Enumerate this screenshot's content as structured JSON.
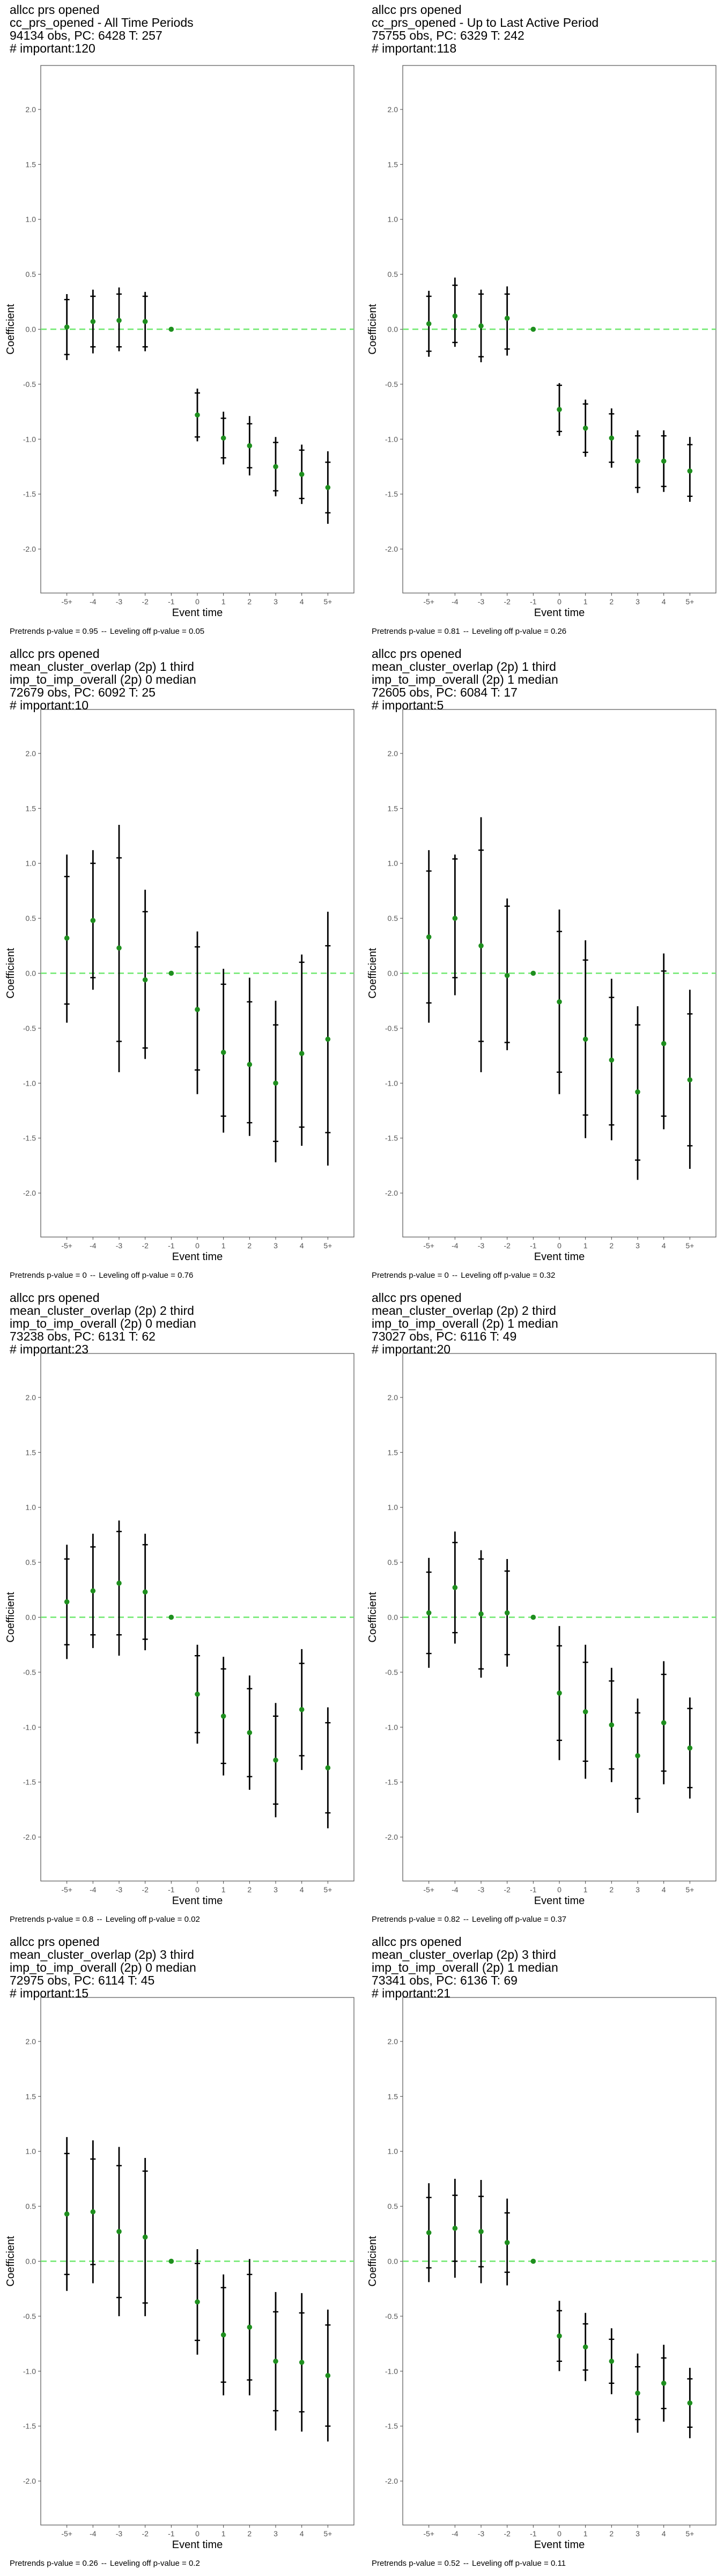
{
  "x_categories": [
    "-5+",
    "-4",
    "-3",
    "-2",
    "-1",
    "0",
    "1",
    "2",
    "3",
    "4",
    "5+"
  ],
  "xlabel": "Event time",
  "ylabel": "Coefficient",
  "ylim": [
    -2.4,
    2.4
  ],
  "yticks": [
    -2.0,
    -1.5,
    -1.0,
    -0.5,
    0.0,
    0.5,
    1.0,
    1.5,
    2.0
  ],
  "ytick_labels": [
    "-2.0",
    "-1.5",
    "-1.0",
    "-0.5",
    "0.0",
    "0.5",
    "1.0",
    "1.5",
    "2.0"
  ],
  "colors": {
    "point": "#1e8f1e",
    "reference_line": "#6fe86f",
    "interval": "#000000",
    "panel_border": "#555555"
  },
  "chart_data": [
    {
      "type": "scatter",
      "title_lines": [
        "allcc prs opened",
        "cc_prs_opened - All Time Periods",
        "94134 obs, PC: 6428 T: 257",
        "# important:120"
      ],
      "footer": {
        "pretrends": "Pretrends p-value = 0.95",
        "separator": "--",
        "leveling": "Leveling off p-value = 0.05"
      },
      "values": [
        0.02,
        0.07,
        0.08,
        0.07,
        0.0,
        -0.78,
        -0.99,
        -1.06,
        -1.25,
        -1.32,
        -1.44
      ],
      "inner": [
        [
          -0.23,
          0.27
        ],
        [
          -0.16,
          0.3
        ],
        [
          -0.16,
          0.32
        ],
        [
          -0.16,
          0.3
        ],
        null,
        [
          -0.98,
          -0.58
        ],
        [
          -1.17,
          -0.81
        ],
        [
          -1.26,
          -0.86
        ],
        [
          -1.47,
          -1.03
        ],
        [
          -1.54,
          -1.1
        ],
        [
          -1.67,
          -1.21
        ]
      ],
      "outer": [
        [
          -0.28,
          0.32
        ],
        [
          -0.22,
          0.36
        ],
        [
          -0.2,
          0.38
        ],
        [
          -0.2,
          0.34
        ],
        null,
        [
          -1.02,
          -0.54
        ],
        [
          -1.23,
          -0.75
        ],
        [
          -1.33,
          -0.79
        ],
        [
          -1.52,
          -0.98
        ],
        [
          -1.59,
          -1.05
        ],
        [
          -1.77,
          -1.11
        ]
      ]
    },
    {
      "type": "scatter",
      "title_lines": [
        "allcc prs opened",
        "cc_prs_opened - Up to Last Active Period",
        "75755 obs, PC: 6329 T: 242",
        "# important:118"
      ],
      "footer": {
        "pretrends": "Pretrends p-value = 0.81",
        "separator": "--",
        "leveling": "Leveling off p-value = 0.26"
      },
      "values": [
        0.05,
        0.12,
        0.03,
        0.1,
        0.0,
        -0.73,
        -0.9,
        -0.99,
        -1.2,
        -1.2,
        -1.29
      ],
      "inner": [
        [
          -0.2,
          0.3
        ],
        [
          -0.12,
          0.4
        ],
        [
          -0.25,
          0.32
        ],
        [
          -0.18,
          0.32
        ],
        null,
        [
          -0.93,
          -0.51
        ],
        [
          -1.12,
          -0.68
        ],
        [
          -1.21,
          -0.77
        ],
        [
          -1.44,
          -0.97
        ],
        [
          -1.43,
          -0.97
        ],
        [
          -1.52,
          -1.05
        ]
      ],
      "outer": [
        [
          -0.25,
          0.35
        ],
        [
          -0.16,
          0.47
        ],
        [
          -0.3,
          0.36
        ],
        [
          -0.24,
          0.39
        ],
        null,
        [
          -0.97,
          -0.49
        ],
        [
          -1.16,
          -0.64
        ],
        [
          -1.26,
          -0.72
        ],
        [
          -1.49,
          -0.92
        ],
        [
          -1.48,
          -0.92
        ],
        [
          -1.57,
          -0.98
        ]
      ]
    },
    {
      "type": "scatter",
      "title_lines": [
        "allcc prs opened",
        "mean_cluster_overlap (2p) 1 third",
        "imp_to_imp_overall (2p) 0 median",
        "72679 obs, PC: 6092 T: 25",
        "# important:10"
      ],
      "footer": {
        "pretrends": "Pretrends p-value = 0",
        "separator": "--",
        "leveling": "Leveling off p-value = 0.76"
      },
      "values": [
        0.32,
        0.48,
        0.23,
        -0.06,
        0.0,
        -0.33,
        -0.72,
        -0.83,
        -1.0,
        -0.73,
        -0.6
      ],
      "inner": [
        [
          -0.28,
          0.88
        ],
        [
          -0.04,
          1.0
        ],
        [
          -0.62,
          1.05
        ],
        [
          -0.68,
          0.56
        ],
        null,
        [
          -0.88,
          0.24
        ],
        [
          -1.3,
          -0.1
        ],
        [
          -1.36,
          -0.26
        ],
        [
          -1.53,
          -0.47
        ],
        [
          -1.4,
          0.1
        ],
        [
          -1.45,
          0.25
        ]
      ],
      "outer": [
        [
          -0.45,
          1.08
        ],
        [
          -0.15,
          1.12
        ],
        [
          -0.9,
          1.35
        ],
        [
          -0.78,
          0.76
        ],
        null,
        [
          -1.1,
          0.38
        ],
        [
          -1.45,
          0.04
        ],
        [
          -1.48,
          -0.04
        ],
        [
          -1.72,
          -0.25
        ],
        [
          -1.57,
          0.17
        ],
        [
          -1.75,
          0.56
        ]
      ]
    },
    {
      "type": "scatter",
      "title_lines": [
        "allcc prs opened",
        "mean_cluster_overlap (2p) 1 third",
        "imp_to_imp_overall (2p) 1 median",
        "72605 obs, PC: 6084 T: 17",
        "# important:5"
      ],
      "footer": {
        "pretrends": "Pretrends p-value = 0",
        "separator": "--",
        "leveling": "Leveling off p-value = 0.32"
      },
      "values": [
        0.33,
        0.5,
        0.25,
        -0.02,
        0.0,
        -0.26,
        -0.6,
        -0.79,
        -1.08,
        -0.64,
        -0.97
      ],
      "inner": [
        [
          -0.27,
          0.93
        ],
        [
          -0.04,
          1.04
        ],
        [
          -0.62,
          1.12
        ],
        [
          -0.63,
          0.61
        ],
        null,
        [
          -0.9,
          0.38
        ],
        [
          -1.29,
          0.12
        ],
        [
          -1.38,
          -0.22
        ],
        [
          -1.7,
          -0.47
        ],
        [
          -1.3,
          0.02
        ],
        [
          -1.57,
          -0.37
        ]
      ],
      "outer": [
        [
          -0.45,
          1.12
        ],
        [
          -0.2,
          1.08
        ],
        [
          -0.9,
          1.42
        ],
        [
          -0.7,
          0.68
        ],
        null,
        [
          -1.1,
          0.58
        ],
        [
          -1.5,
          0.3
        ],
        [
          -1.52,
          -0.05
        ],
        [
          -1.88,
          -0.3
        ],
        [
          -1.42,
          0.18
        ],
        [
          -1.78,
          -0.15
        ]
      ]
    },
    {
      "type": "scatter",
      "title_lines": [
        "allcc prs opened",
        "mean_cluster_overlap (2p) 2 third",
        "imp_to_imp_overall (2p) 0 median",
        "73238 obs, PC: 6131 T: 62",
        "# important:23"
      ],
      "footer": {
        "pretrends": "Pretrends p-value = 0.8",
        "separator": "--",
        "leveling": "Leveling off p-value = 0.02"
      },
      "values": [
        0.14,
        0.24,
        0.31,
        0.23,
        0.0,
        -0.7,
        -0.9,
        -1.05,
        -1.3,
        -0.84,
        -1.37
      ],
      "inner": [
        [
          -0.25,
          0.53
        ],
        [
          -0.16,
          0.64
        ],
        [
          -0.16,
          0.78
        ],
        [
          -0.2,
          0.66
        ],
        null,
        [
          -1.05,
          -0.35
        ],
        [
          -1.33,
          -0.47
        ],
        [
          -1.45,
          -0.65
        ],
        [
          -1.7,
          -0.9
        ],
        [
          -1.26,
          -0.42
        ],
        [
          -1.78,
          -0.96
        ]
      ],
      "outer": [
        [
          -0.38,
          0.66
        ],
        [
          -0.28,
          0.76
        ],
        [
          -0.35,
          0.88
        ],
        [
          -0.3,
          0.76
        ],
        null,
        [
          -1.15,
          -0.25
        ],
        [
          -1.44,
          -0.36
        ],
        [
          -1.57,
          -0.53
        ],
        [
          -1.82,
          -0.78
        ],
        [
          -1.39,
          -0.29
        ],
        [
          -1.92,
          -0.82
        ]
      ]
    },
    {
      "type": "scatter",
      "title_lines": [
        "allcc prs opened",
        "mean_cluster_overlap (2p) 2 third",
        "imp_to_imp_overall (2p) 1 median",
        "73027 obs, PC: 6116 T: 49",
        "# important:20"
      ],
      "footer": {
        "pretrends": "Pretrends p-value = 0.82",
        "separator": "--",
        "leveling": "Leveling off p-value = 0.37"
      },
      "values": [
        0.04,
        0.27,
        0.03,
        0.04,
        0.0,
        -0.69,
        -0.86,
        -0.98,
        -1.26,
        -0.96,
        -1.19
      ],
      "inner": [
        [
          -0.33,
          0.41
        ],
        [
          -0.14,
          0.68
        ],
        [
          -0.47,
          0.53
        ],
        [
          -0.34,
          0.42
        ],
        null,
        [
          -1.12,
          -0.26
        ],
        [
          -1.31,
          -0.41
        ],
        [
          -1.38,
          -0.58
        ],
        [
          -1.65,
          -0.87
        ],
        [
          -1.4,
          -0.52
        ],
        [
          -1.55,
          -0.83
        ]
      ],
      "outer": [
        [
          -0.46,
          0.54
        ],
        [
          -0.24,
          0.78
        ],
        [
          -0.55,
          0.61
        ],
        [
          -0.45,
          0.53
        ],
        null,
        [
          -1.3,
          -0.08
        ],
        [
          -1.47,
          -0.25
        ],
        [
          -1.5,
          -0.46
        ],
        [
          -1.78,
          -0.74
        ],
        [
          -1.52,
          -0.4
        ],
        [
          -1.65,
          -0.73
        ]
      ]
    },
    {
      "type": "scatter",
      "title_lines": [
        "allcc prs opened",
        "mean_cluster_overlap (2p) 3 third",
        "imp_to_imp_overall (2p) 0 median",
        "72975 obs, PC: 6114 T: 45",
        "# important:15"
      ],
      "footer": {
        "pretrends": "Pretrends p-value = 0.26",
        "separator": "--",
        "leveling": "Leveling off p-value = 0.2"
      },
      "values": [
        0.43,
        0.45,
        0.27,
        0.22,
        0.0,
        -0.37,
        -0.67,
        -0.6,
        -0.91,
        -0.92,
        -1.04
      ],
      "inner": [
        [
          -0.12,
          0.98
        ],
        [
          -0.03,
          0.93
        ],
        [
          -0.33,
          0.87
        ],
        [
          -0.38,
          0.82
        ],
        null,
        [
          -0.72,
          -0.02
        ],
        [
          -1.1,
          -0.24
        ],
        [
          -1.08,
          -0.12
        ],
        [
          -1.36,
          -0.46
        ],
        [
          -1.37,
          -0.47
        ],
        [
          -1.5,
          -0.58
        ]
      ],
      "outer": [
        [
          -0.27,
          1.13
        ],
        [
          -0.2,
          1.1
        ],
        [
          -0.5,
          1.04
        ],
        [
          -0.5,
          0.94
        ],
        null,
        [
          -0.85,
          0.11
        ],
        [
          -1.22,
          -0.12
        ],
        [
          -1.22,
          0.02
        ],
        [
          -1.54,
          -0.28
        ],
        [
          -1.55,
          -0.29
        ],
        [
          -1.64,
          -0.44
        ]
      ]
    },
    {
      "type": "scatter",
      "title_lines": [
        "allcc prs opened",
        "mean_cluster_overlap (2p) 3 third",
        "imp_to_imp_overall (2p) 1 median",
        "73341 obs, PC: 6136 T: 69",
        "# important:21"
      ],
      "footer": {
        "pretrends": "Pretrends p-value = 0.52",
        "separator": "--",
        "leveling": "Leveling off p-value = 0.11"
      },
      "values": [
        0.26,
        0.3,
        0.27,
        0.17,
        0.0,
        -0.68,
        -0.78,
        -0.91,
        -1.2,
        -1.11,
        -1.29
      ],
      "inner": [
        [
          -0.06,
          0.58
        ],
        [
          0.0,
          0.6
        ],
        [
          -0.05,
          0.59
        ],
        [
          -0.1,
          0.44
        ],
        null,
        [
          -0.91,
          -0.45
        ],
        [
          -0.99,
          -0.57
        ],
        [
          -1.11,
          -0.71
        ],
        [
          -1.44,
          -0.96
        ],
        [
          -1.34,
          -0.88
        ],
        [
          -1.51,
          -1.07
        ]
      ],
      "outer": [
        [
          -0.19,
          0.71
        ],
        [
          -0.15,
          0.75
        ],
        [
          -0.2,
          0.74
        ],
        [
          -0.22,
          0.57
        ],
        null,
        [
          -1.0,
          -0.36
        ],
        [
          -1.09,
          -0.47
        ],
        [
          -1.21,
          -0.61
        ],
        [
          -1.56,
          -0.84
        ],
        [
          -1.46,
          -0.76
        ],
        [
          -1.61,
          -0.97
        ]
      ]
    }
  ]
}
